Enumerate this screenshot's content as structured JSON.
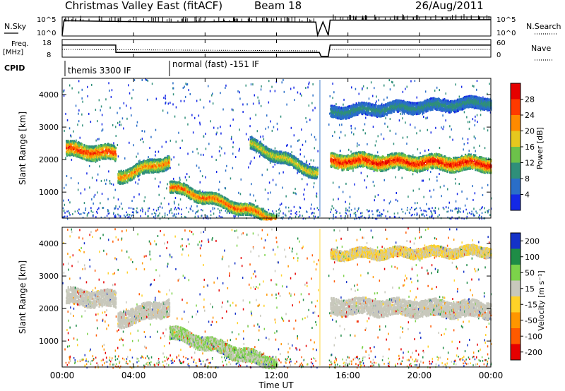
{
  "header": {
    "title": "Christmas Valley East (fitACF)",
    "beam": "Beam 18",
    "date": "26/Aug/2011"
  },
  "noise_panel": {
    "left_label": "N.Sky",
    "right_label": "N.Search",
    "left_ticks": [
      "10^5",
      "10^0"
    ],
    "right_ticks": [
      "10^5",
      "10^0"
    ]
  },
  "freq_panel": {
    "label_line1": "Freq.",
    "label_line2": "[MHz]",
    "left_ticks": [
      "18",
      "8"
    ],
    "right_ticks": [
      "60",
      "0"
    ],
    "right_label": "Nave"
  },
  "cpid": {
    "label": "CPID",
    "segments": [
      {
        "text": "themis 3300 IF",
        "start_hour": 0
      },
      {
        "text": "normal (fast) -151 IF",
        "start_hour": 6
      }
    ]
  },
  "power_colorbar": {
    "label": "Power [dB]",
    "ticks": [
      "4",
      "8",
      "12",
      "16",
      "20",
      "24",
      "28"
    ],
    "colors": [
      "#1428e6",
      "#2a6ec8",
      "#2f8f7a",
      "#6cc24a",
      "#e6c81e",
      "#ff8a00",
      "#ff3a00",
      "#e60000"
    ]
  },
  "velocity_colorbar": {
    "label": "Velocity [m s⁻¹]",
    "ticks": [
      "200",
      "100",
      "50",
      "15",
      "-15",
      "-50",
      "-100",
      "-200"
    ],
    "colors": [
      "#1432c8",
      "#1e8c46",
      "#7cd24a",
      "#c8c8bc",
      "#ffd228",
      "#ff9600",
      "#ff5a00",
      "#e60000"
    ]
  },
  "axes": {
    "xlabel": "Time UT",
    "ylabel": "Slant Range [km]",
    "x_tick_labels": [
      "00:00",
      "04:00",
      "08:00",
      "12:00",
      "16:00",
      "20:00",
      "00:00"
    ],
    "y_tick_labels": [
      "1000",
      "2000",
      "3000",
      "4000"
    ]
  },
  "chart_data": [
    {
      "type": "line",
      "panel": "noise",
      "title": "",
      "xlabel": "",
      "ylabel": "N.Sky",
      "x_hours": [
        0,
        0.1,
        3,
        6,
        9,
        12,
        14.2,
        14.3,
        14.6,
        14.9,
        15,
        18,
        21,
        24
      ],
      "series": [
        {
          "values": [
            1,
            20000,
            12000,
            8000,
            10000,
            9000,
            8000,
            1,
            9000,
            1,
            30000,
            30000,
            35000,
            40000
          ]
        }
      ],
      "ylog": true,
      "ylim": [
        1,
        100000
      ]
    },
    {
      "type": "line",
      "panel": "frequency",
      "title": "",
      "xlabel": "",
      "ylabel": "Freq. [MHz]",
      "x_hours": [
        0,
        3,
        3.01,
        14.4,
        14.5,
        14.9,
        15,
        24
      ],
      "series": [
        {
          "values": [
            15,
            15,
            10.5,
            10.5,
            8,
            8,
            15,
            15
          ]
        }
      ],
      "ylim": [
        8,
        18
      ]
    },
    {
      "type": "heatmap",
      "panel": "power",
      "title": "",
      "xlabel": "Time UT",
      "ylabel": "Slant Range [km]",
      "colorbar": "Power [dB]",
      "xlim_hours": [
        0,
        24
      ],
      "ylim_km": [
        200,
        4500
      ],
      "bands": [
        {
          "t_start": 0.2,
          "t_end": 3,
          "range_start_km": 2350,
          "range_end_km": 2200,
          "width_km": 450,
          "peak_db": 26
        },
        {
          "t_start": 3.1,
          "t_end": 6,
          "range_start_km": 1500,
          "range_end_km": 2000,
          "width_km": 400,
          "peak_db": 22
        },
        {
          "t_start": 6,
          "t_end": 12,
          "range_start_km": 1200,
          "range_end_km": 200,
          "width_km": 350,
          "peak_db": 24
        },
        {
          "t_start": 10.5,
          "t_end": 14.3,
          "range_start_km": 2500,
          "range_end_km": 1600,
          "width_km": 350,
          "peak_db": 18
        },
        {
          "t_start": 15,
          "t_end": 24,
          "range_start_km": 2000,
          "range_end_km": 1900,
          "width_km": 450,
          "peak_db": 28
        },
        {
          "t_start": 15,
          "t_end": 24,
          "range_start_km": 3500,
          "range_end_km": 3800,
          "width_km": 350,
          "peak_db": 10
        }
      ]
    },
    {
      "type": "heatmap",
      "panel": "velocity",
      "title": "",
      "xlabel": "Time UT",
      "ylabel": "Slant Range [km]",
      "colorbar": "Velocity [m s⁻¹]",
      "xlim_hours": [
        0,
        24
      ],
      "ylim_km": [
        200,
        4500
      ],
      "bands": [
        {
          "t_start": 0.2,
          "t_end": 3,
          "range_start_km": 2400,
          "range_end_km": 2300,
          "width_km": 500,
          "velocity": 0
        },
        {
          "t_start": 3.1,
          "t_end": 6,
          "range_start_km": 1700,
          "range_end_km": 2100,
          "width_km": 500,
          "velocity": 0
        },
        {
          "t_start": 6,
          "t_end": 12,
          "range_start_km": 1300,
          "range_end_km": 300,
          "width_km": 400,
          "velocity": 40
        },
        {
          "t_start": 15,
          "t_end": 24,
          "range_start_km": 2100,
          "range_end_km": 2000,
          "width_km": 500,
          "velocity": 0
        },
        {
          "t_start": 15,
          "t_end": 24,
          "range_start_km": 3700,
          "range_end_km": 3800,
          "width_km": 300,
          "velocity": -30
        }
      ]
    }
  ]
}
